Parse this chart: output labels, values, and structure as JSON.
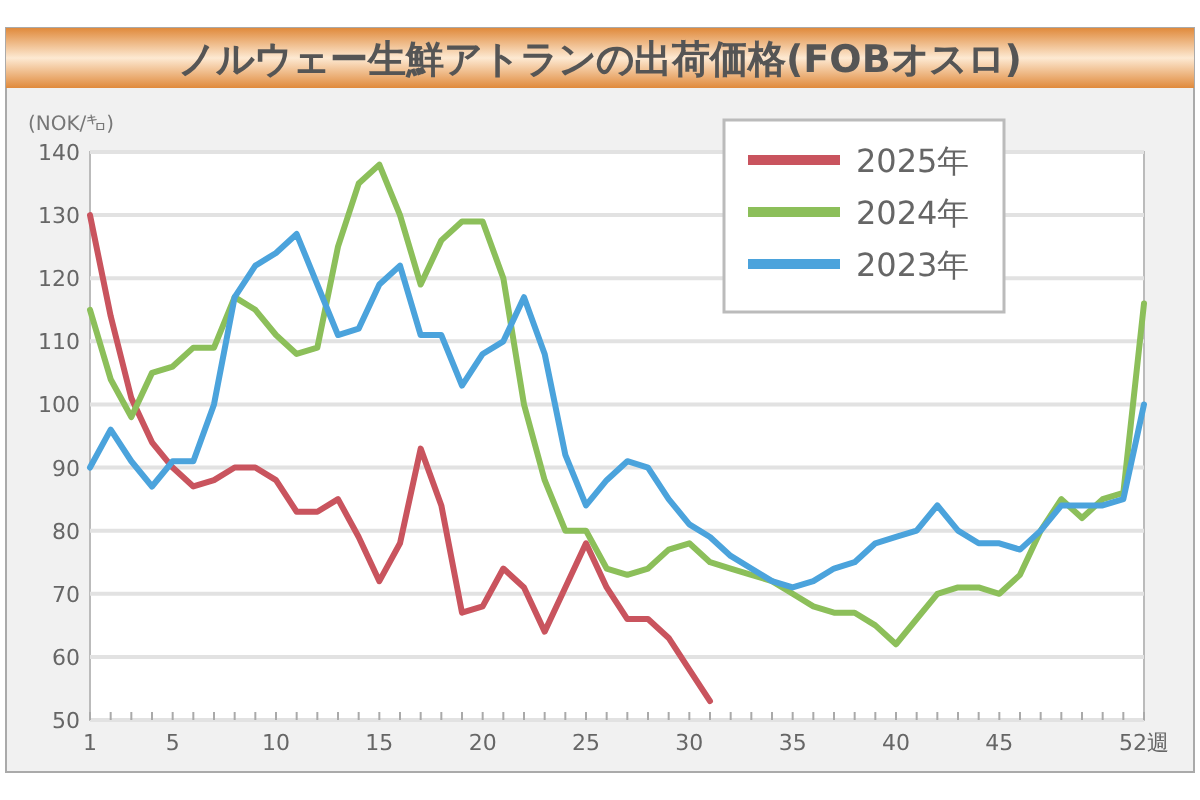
{
  "chart_data": {
    "type": "line",
    "title": "ノルウェー生鮮アトランの出荷価格(FOBオスロ)",
    "ylabel": "(NOK/㌔)",
    "x": [
      1,
      2,
      3,
      4,
      5,
      6,
      7,
      8,
      9,
      10,
      11,
      12,
      13,
      14,
      15,
      16,
      17,
      18,
      19,
      20,
      21,
      22,
      23,
      24,
      25,
      26,
      27,
      28,
      29,
      30,
      31,
      32,
      33,
      34,
      35,
      36,
      37,
      38,
      39,
      40,
      41,
      42,
      43,
      44,
      45,
      46,
      47,
      48,
      49,
      50,
      51,
      52
    ],
    "series": [
      {
        "name": "2025年",
        "color": "#c9545e",
        "values": [
          130,
          114,
          101,
          94,
          90,
          87,
          88,
          90,
          90,
          88,
          83,
          83,
          85,
          79,
          72,
          78,
          93,
          84,
          67,
          68,
          74,
          71,
          64,
          71,
          78,
          71,
          66,
          66,
          63,
          58,
          53,
          null,
          null,
          null,
          null,
          null,
          null,
          null,
          null,
          null,
          null,
          null,
          null,
          null,
          null,
          null,
          null,
          null,
          null,
          null,
          null,
          null
        ]
      },
      {
        "name": "2024年",
        "color": "#8cbf5a",
        "values": [
          115,
          104,
          98,
          105,
          106,
          109,
          109,
          117,
          115,
          111,
          108,
          109,
          125,
          135,
          138,
          130,
          119,
          126,
          129,
          129,
          120,
          100,
          88,
          80,
          80,
          74,
          73,
          74,
          77,
          78,
          75,
          74,
          73,
          72,
          70,
          68,
          67,
          67,
          65,
          62,
          66,
          70,
          71,
          71,
          70,
          73,
          80,
          85,
          82,
          85,
          86,
          116
        ]
      },
      {
        "name": "2023年",
        "color": "#4ba3dc",
        "values": [
          90,
          96,
          91,
          87,
          91,
          91,
          100,
          117,
          122,
          124,
          127,
          119,
          111,
          112,
          119,
          122,
          111,
          111,
          103,
          108,
          110,
          117,
          108,
          92,
          84,
          88,
          91,
          90,
          85,
          81,
          79,
          76,
          74,
          72,
          71,
          72,
          74,
          75,
          78,
          79,
          80,
          84,
          80,
          78,
          78,
          77,
          80,
          84,
          84,
          84,
          85,
          100
        ]
      }
    ],
    "xlim": [
      1,
      52
    ],
    "ylim": [
      50,
      140
    ],
    "xticks": [
      1,
      {
        "value": 2,
        "label": null
      },
      {
        "value": 3,
        "label": null
      },
      {
        "value": 4,
        "label": null
      },
      5,
      {
        "value": 6,
        "label": null
      },
      {
        "value": 7,
        "label": null
      },
      {
        "value": 8,
        "label": null
      },
      {
        "value": 9,
        "label": null
      },
      10,
      {
        "value": 11,
        "label": null
      },
      {
        "value": 12,
        "label": null
      },
      {
        "value": 13,
        "label": null
      },
      {
        "value": 14,
        "label": null
      },
      15,
      {
        "value": 16,
        "label": null
      },
      {
        "value": 17,
        "label": null
      },
      {
        "value": 18,
        "label": null
      },
      {
        "value": 19,
        "label": null
      },
      20,
      {
        "value": 21,
        "label": null
      },
      {
        "value": 22,
        "label": null
      },
      {
        "value": 23,
        "label": null
      },
      {
        "value": 24,
        "label": null
      },
      25,
      {
        "value": 26,
        "label": null
      },
      {
        "value": 27,
        "label": null
      },
      {
        "value": 28,
        "label": null
      },
      {
        "value": 29,
        "label": null
      },
      30,
      {
        "value": 31,
        "label": null
      },
      {
        "value": 32,
        "label": null
      },
      {
        "value": 33,
        "label": null
      },
      {
        "value": 34,
        "label": null
      },
      35,
      {
        "value": 36,
        "label": null
      },
      {
        "value": 37,
        "label": null
      },
      {
        "value": 38,
        "label": null
      },
      {
        "value": 39,
        "label": null
      },
      40,
      {
        "value": 41,
        "label": null
      },
      {
        "value": 42,
        "label": null
      },
      {
        "value": 43,
        "label": null
      },
      {
        "value": 44,
        "label": null
      },
      45,
      {
        "value": 46,
        "label": null
      },
      {
        "value": 47,
        "label": null
      },
      {
        "value": 48,
        "label": null
      },
      {
        "value": 49,
        "label": null
      },
      {
        "value": 50,
        "label": null
      },
      {
        "value": 51,
        "label": null
      },
      {
        "value": 52,
        "label": "52週"
      }
    ],
    "yticks": [
      50,
      60,
      70,
      80,
      90,
      100,
      110,
      120,
      130,
      140
    ],
    "grid": "y",
    "legend": "top right",
    "marker": "none",
    "line_style": "solid"
  }
}
